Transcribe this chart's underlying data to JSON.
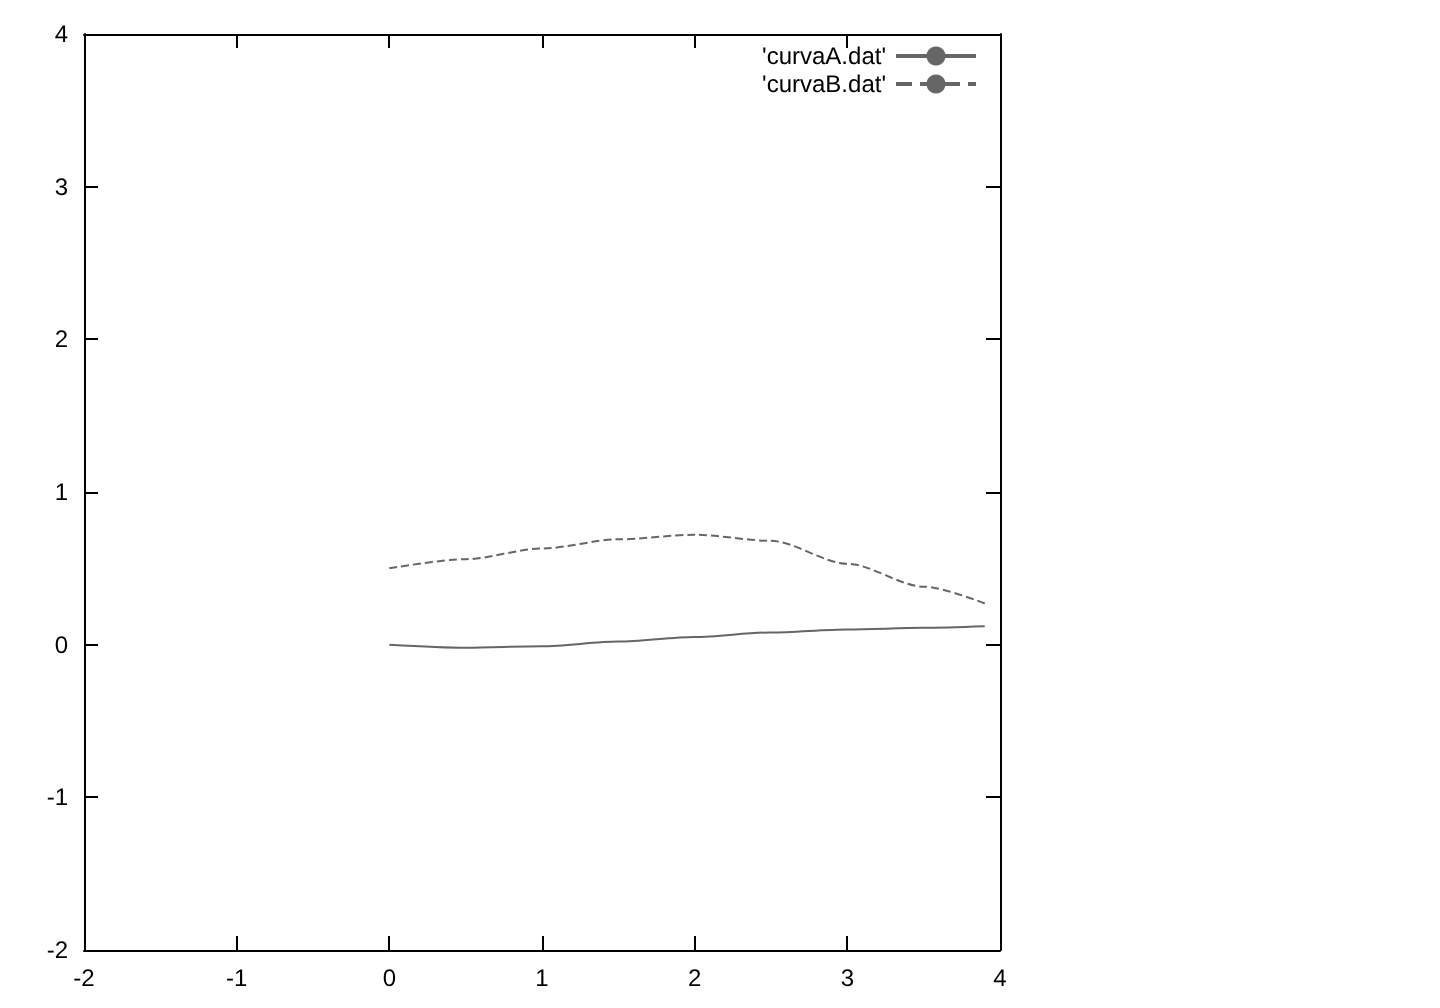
{
  "chart_data": {
    "type": "line",
    "xlim": [
      -2,
      4
    ],
    "ylim": [
      -2,
      4
    ],
    "xticks": [
      -2,
      -1,
      0,
      1,
      2,
      3,
      4
    ],
    "yticks": [
      -2,
      -1,
      0,
      1,
      2,
      3,
      4
    ],
    "grid": false,
    "legend": "top right",
    "marker": "none",
    "series": [
      {
        "name": "'curvaA.dat'",
        "color": "#666666",
        "line_style": "solid",
        "x": [
          0,
          0.5,
          1,
          1.5,
          2,
          2.5,
          3,
          3.5,
          3.9
        ],
        "values": [
          0,
          -0.02,
          -0.01,
          0.02,
          0.05,
          0.08,
          0.1,
          0.11,
          0.12
        ]
      },
      {
        "name": "'curvaB.dat'",
        "color": "#666666",
        "line_style": "dashed",
        "x": [
          0,
          0.5,
          1,
          1.5,
          2,
          2.5,
          3,
          3.5,
          3.9
        ],
        "values": [
          0.5,
          0.56,
          0.63,
          0.69,
          0.72,
          0.68,
          0.53,
          0.38,
          0.27
        ]
      }
    ]
  }
}
